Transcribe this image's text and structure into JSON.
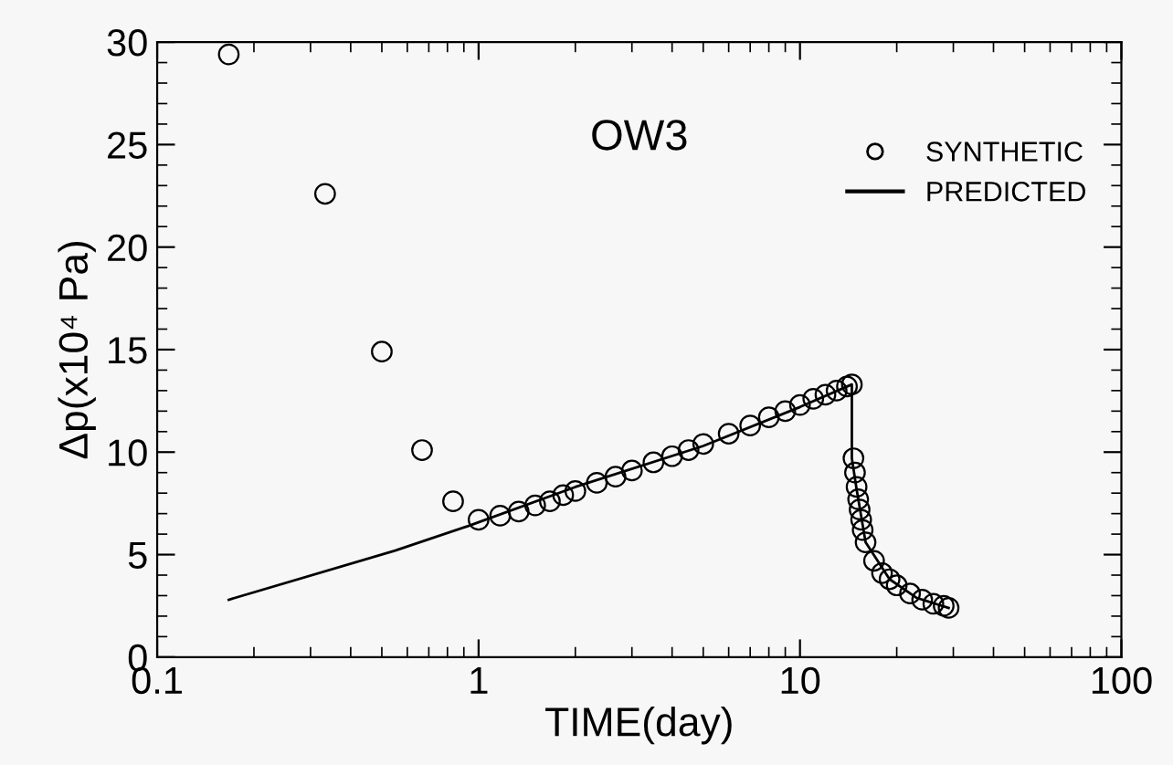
{
  "chart_data": {
    "type": "scatter",
    "title": "OW3",
    "xlabel": "TIME(day)",
    "ylabel": "Δp(x10⁴ Pa)",
    "log": "x",
    "xlim": [
      0.1,
      100
    ],
    "xticks": [
      0.1,
      1,
      10,
      100
    ],
    "ylim": [
      0,
      30
    ],
    "yticks": [
      0,
      5,
      10,
      15,
      20,
      25,
      30
    ],
    "grid": false,
    "legend": "top right",
    "tick_labels": "xy",
    "series": [
      {
        "name": "SYNTHETIC",
        "marker": "circle",
        "color": "#000000",
        "x": [
          0.167,
          0.333,
          0.5,
          0.667,
          0.833,
          1.0,
          1.167,
          1.333,
          1.5,
          1.667,
          1.833,
          2.0,
          2.333,
          2.667,
          3.0,
          3.5,
          4.0,
          4.5,
          5.0,
          6.0,
          7.0,
          8.0,
          9.0,
          10.0,
          11.0,
          12.0,
          13.0,
          14.0,
          14.5,
          14.67,
          14.83,
          15.0,
          15.17,
          15.33,
          15.5,
          15.67,
          16.0,
          17.0,
          18.0,
          19.0,
          20.0,
          22.0,
          24.0,
          26.0,
          28.0,
          29.0
        ],
        "values": [
          29.4,
          22.6,
          14.9,
          10.1,
          7.6,
          6.7,
          6.9,
          7.1,
          7.4,
          7.6,
          7.9,
          8.1,
          8.5,
          8.8,
          9.1,
          9.5,
          9.8,
          10.1,
          10.4,
          10.9,
          11.3,
          11.7,
          12.0,
          12.3,
          12.6,
          12.8,
          13.0,
          13.2,
          13.3,
          9.7,
          9.0,
          8.3,
          7.7,
          7.2,
          6.7,
          6.2,
          5.6,
          4.7,
          4.1,
          3.8,
          3.5,
          3.1,
          2.8,
          2.6,
          2.5,
          2.4
        ]
      },
      {
        "name": "PREDICTED",
        "type": "line",
        "marker": "none",
        "line_style": "solid",
        "color": "#000000",
        "x": [
          0.167,
          0.55,
          0.93,
          2.0,
          5.0,
          10.0,
          14.5,
          14.5,
          15.0,
          16.0,
          19.0,
          23.0,
          29.0
        ],
        "values": [
          2.8,
          5.2,
          6.4,
          8.3,
          10.3,
          12.2,
          13.3,
          9.7,
          8.2,
          5.6,
          3.8,
          2.9,
          2.4
        ]
      }
    ]
  }
}
